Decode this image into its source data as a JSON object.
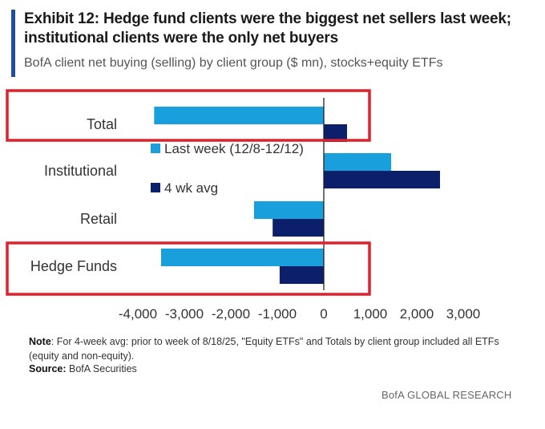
{
  "header": {
    "title_line1": "Exhibit 12: Hedge fund clients were the biggest net sellers last week;",
    "title_line2": "institutional clients were the only net buyers",
    "subtitle": "BofA client net buying (selling) by client group ($ mn), stocks+equity ETFs"
  },
  "chart_data": {
    "type": "bar",
    "orientation": "horizontal",
    "categories": [
      "Total",
      "Institutional",
      "Retail",
      "Hedge Funds"
    ],
    "series": [
      {
        "name": "Last week (12/8-12/12)",
        "color": "#19a0dc",
        "values": [
          -3650,
          1450,
          -1500,
          -3500
        ]
      },
      {
        "name": "4 wk avg",
        "color": "#0b1f6b",
        "values": [
          500,
          2500,
          -1100,
          -950
        ]
      }
    ],
    "xlim": [
      -4000,
      3000
    ],
    "xticks": [
      "-4,000",
      "-3,000",
      "-2,000",
      "-1,000",
      "0",
      "1,000",
      "2,000",
      "3,000"
    ],
    "xtick_values": [
      -4000,
      -3000,
      -2000,
      -1000,
      0,
      1000,
      2000,
      3000
    ],
    "highlighted_categories": [
      "Total",
      "Hedge Funds"
    ],
    "highlight_color": "#e0202a",
    "legend_placement": "middle-left"
  },
  "footer": {
    "note_label": "Note",
    "note_text": ": For 4-week avg: prior to week of 8/18/25, \"Equity ETFs\" and Totals by client group included all ETFs (equity and non-equity).",
    "source_label": "Source:",
    "source_text": " BofA Securities",
    "brand": "BofA GLOBAL RESEARCH"
  }
}
